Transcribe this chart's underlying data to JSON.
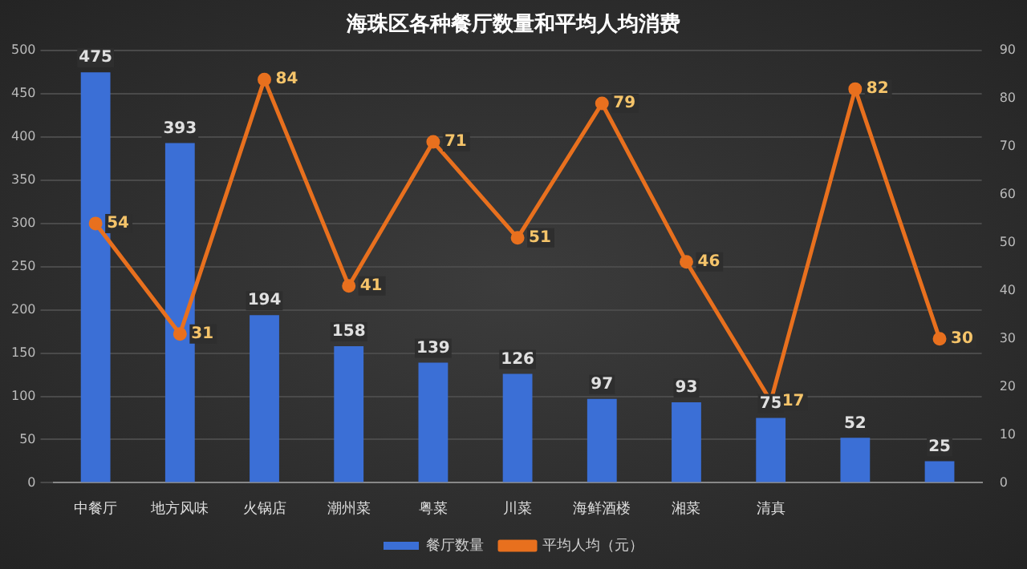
{
  "chart_data": {
    "type": "bar",
    "title": "海珠区各种餐厅数量和平均人均消费",
    "categories": [
      "中餐厅",
      "地方风味",
      "火锅店",
      "潮州菜",
      "粤菜",
      "川菜",
      "海鲜酒楼",
      "湘菜",
      "清真",
      null,
      null
    ],
    "series": [
      {
        "name": "餐厅数量",
        "color": "#3b6fd6",
        "values": [
          475,
          393,
          194,
          158,
          139,
          126,
          97,
          93,
          75,
          52,
          25
        ]
      },
      {
        "name": "平均人均（元）",
        "type": "line",
        "axis": "y2",
        "color": "#e8701e",
        "values": [
          54,
          31,
          84,
          41,
          71,
          51,
          79,
          46,
          17,
          82,
          30
        ]
      }
    ],
    "ylim": [
      0,
      500
    ],
    "yticks": [
      0,
      50,
      100,
      150,
      200,
      250,
      300,
      350,
      400,
      450,
      500
    ],
    "y2lim": [
      0,
      90
    ],
    "y2ticks": [
      0,
      10,
      20,
      30,
      40,
      50,
      60,
      70,
      80,
      90
    ],
    "grid": "y",
    "legend": "bottom",
    "marker": "circle",
    "line_style": "solid",
    "data_labels": true
  }
}
